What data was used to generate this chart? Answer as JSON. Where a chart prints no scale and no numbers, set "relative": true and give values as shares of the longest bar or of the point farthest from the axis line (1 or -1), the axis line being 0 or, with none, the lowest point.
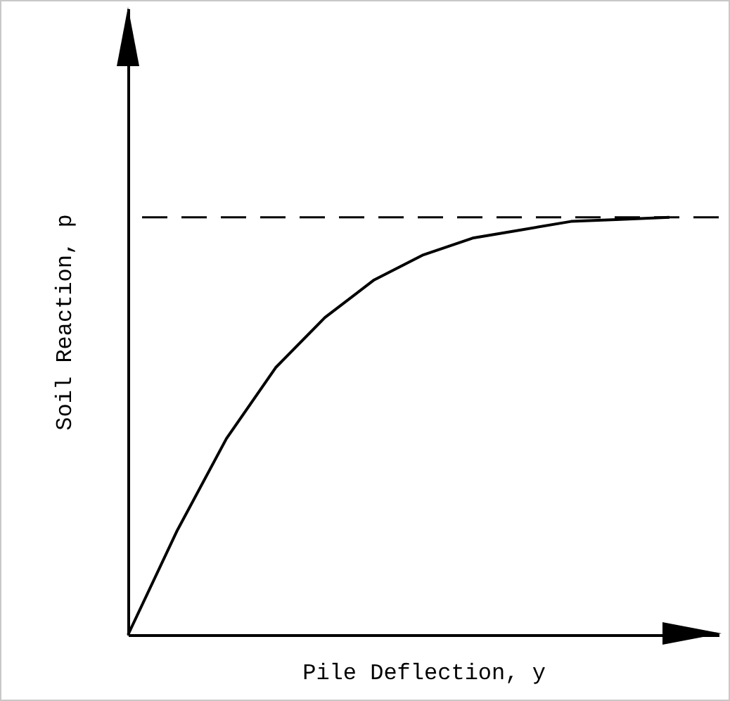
{
  "chart_data": {
    "type": "line",
    "relative": true,
    "xlabel": "Pile Deflection, y",
    "ylabel": "Soil Reaction, p",
    "categories": [
      null,
      null,
      null,
      null,
      null,
      null,
      null,
      null,
      null,
      null,
      null,
      null
    ],
    "series": [
      {
        "color": "#000000",
        "values": [
          0,
          0.25,
          0.47,
          0.64,
          0.76,
          0.85,
          0.91,
          0.95,
          0.97,
          0.99,
          0.995,
          1
        ]
      }
    ],
    "ref_lines": [
      {
        "axis": "y",
        "value": 1,
        "line_style": "dashed",
        "color": "#000000"
      }
    ]
  }
}
